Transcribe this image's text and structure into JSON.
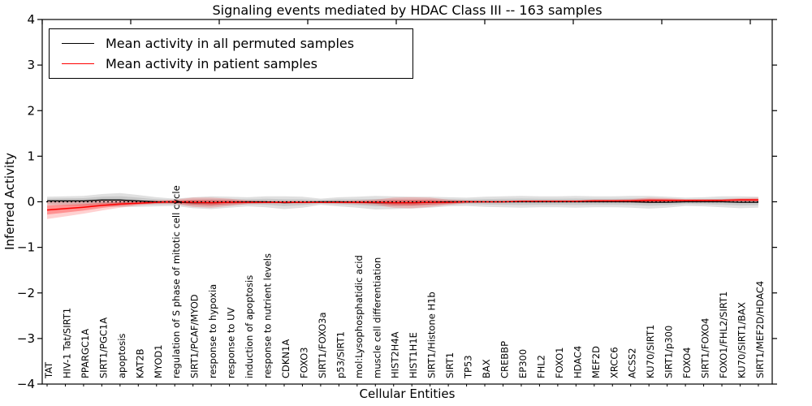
{
  "chart_data": {
    "type": "line",
    "title": "Signaling events mediated by HDAC Class III -- 163 samples",
    "xlabel": "Cellular Entities",
    "ylabel": "Inferred Activity",
    "ylim": [
      -4,
      4
    ],
    "yticks": [
      4,
      3,
      2,
      1,
      0,
      -1,
      -2,
      -3,
      -4
    ],
    "ytick_labels": [
      "4",
      "3",
      "2",
      "1",
      "0",
      "−1",
      "−2",
      "−3",
      "−4"
    ],
    "grid": false,
    "legend_position": "upper left",
    "categories": [
      "TAT",
      "HIV-1 Tat/SIRT1",
      "PPARGC1A",
      "SIRT1/PGC1A",
      "apoptosis",
      "KAT2B",
      "MYOD1",
      "regulation of S phase of mitotic cell cycle",
      "SIRT1/PCAF/MYOD",
      "response to hypoxia",
      "response to UV",
      "induction of apoptosis",
      "response to nutrient levels",
      "CDKN1A",
      "FOXO3",
      "SIRT1/FOXO3a",
      "p53/SIRT1",
      "mol:Lysophosphatidic acid",
      "muscle cell differentiation",
      "HIST2H4A",
      "HIST1H1E",
      "SIRT1/Histone H1b",
      "SIRT1",
      "TP53",
      "BAX",
      "CREBBP",
      "EP300",
      "FHL2",
      "FOXO1",
      "HDAC4",
      "MEF2D",
      "XRCC6",
      "ACSS2",
      "KU70/SIRT1",
      "SIRT1/p300",
      "FOXO4",
      "SIRT1/FOXO4",
      "FOXO1/FHL2/SIRT1",
      "KU70/SIRT1/BAX",
      "SIRT1/MEF2D/HDAC4"
    ],
    "series": [
      {
        "name": "Mean activity in all permuted samples",
        "color": "#000000",
        "values": [
          0.02,
          0.02,
          0.02,
          0.04,
          0.04,
          0.02,
          0.0,
          -0.01,
          -0.02,
          -0.02,
          -0.01,
          0.0,
          0.0,
          -0.02,
          -0.01,
          0.0,
          0.0,
          -0.01,
          -0.02,
          -0.02,
          -0.02,
          -0.01,
          0.0,
          0.0,
          0.0,
          0.0,
          0.0,
          0.0,
          0.0,
          0.0,
          0.0,
          0.0,
          0.0,
          -0.01,
          -0.01,
          0.0,
          0.0,
          0.0,
          -0.01,
          -0.01
        ],
        "band_halfwidth": [
          0.09,
          0.1,
          0.11,
          0.13,
          0.15,
          0.13,
          0.1,
          0.08,
          0.12,
          0.14,
          0.12,
          0.1,
          0.12,
          0.14,
          0.12,
          0.07,
          0.1,
          0.12,
          0.15,
          0.14,
          0.13,
          0.12,
          0.1,
          0.09,
          0.11,
          0.12,
          0.13,
          0.12,
          0.12,
          0.13,
          0.12,
          0.12,
          0.13,
          0.14,
          0.12,
          0.09,
          0.1,
          0.12,
          0.13,
          0.12
        ]
      },
      {
        "name": "Mean activity in patient samples",
        "color": "#ff0000",
        "values": [
          -0.18,
          -0.15,
          -0.12,
          -0.08,
          -0.05,
          -0.03,
          -0.01,
          0.0,
          -0.01,
          -0.02,
          -0.01,
          -0.01,
          -0.01,
          -0.01,
          -0.01,
          -0.01,
          -0.01,
          -0.01,
          -0.01,
          -0.02,
          -0.02,
          -0.01,
          -0.01,
          0.0,
          0.0,
          0.0,
          0.01,
          0.01,
          0.01,
          0.01,
          0.02,
          0.02,
          0.02,
          0.03,
          0.03,
          0.03,
          0.03,
          0.03,
          0.04,
          0.04
        ],
        "band_halfwidth": [
          0.2,
          0.17,
          0.14,
          0.11,
          0.08,
          0.05,
          0.04,
          0.05,
          0.1,
          0.11,
          0.08,
          0.04,
          0.03,
          0.03,
          0.03,
          0.02,
          0.03,
          0.04,
          0.06,
          0.11,
          0.12,
          0.1,
          0.06,
          0.03,
          0.02,
          0.02,
          0.02,
          0.02,
          0.02,
          0.02,
          0.03,
          0.03,
          0.04,
          0.06,
          0.05,
          0.03,
          0.03,
          0.03,
          0.04,
          0.05
        ]
      }
    ]
  }
}
